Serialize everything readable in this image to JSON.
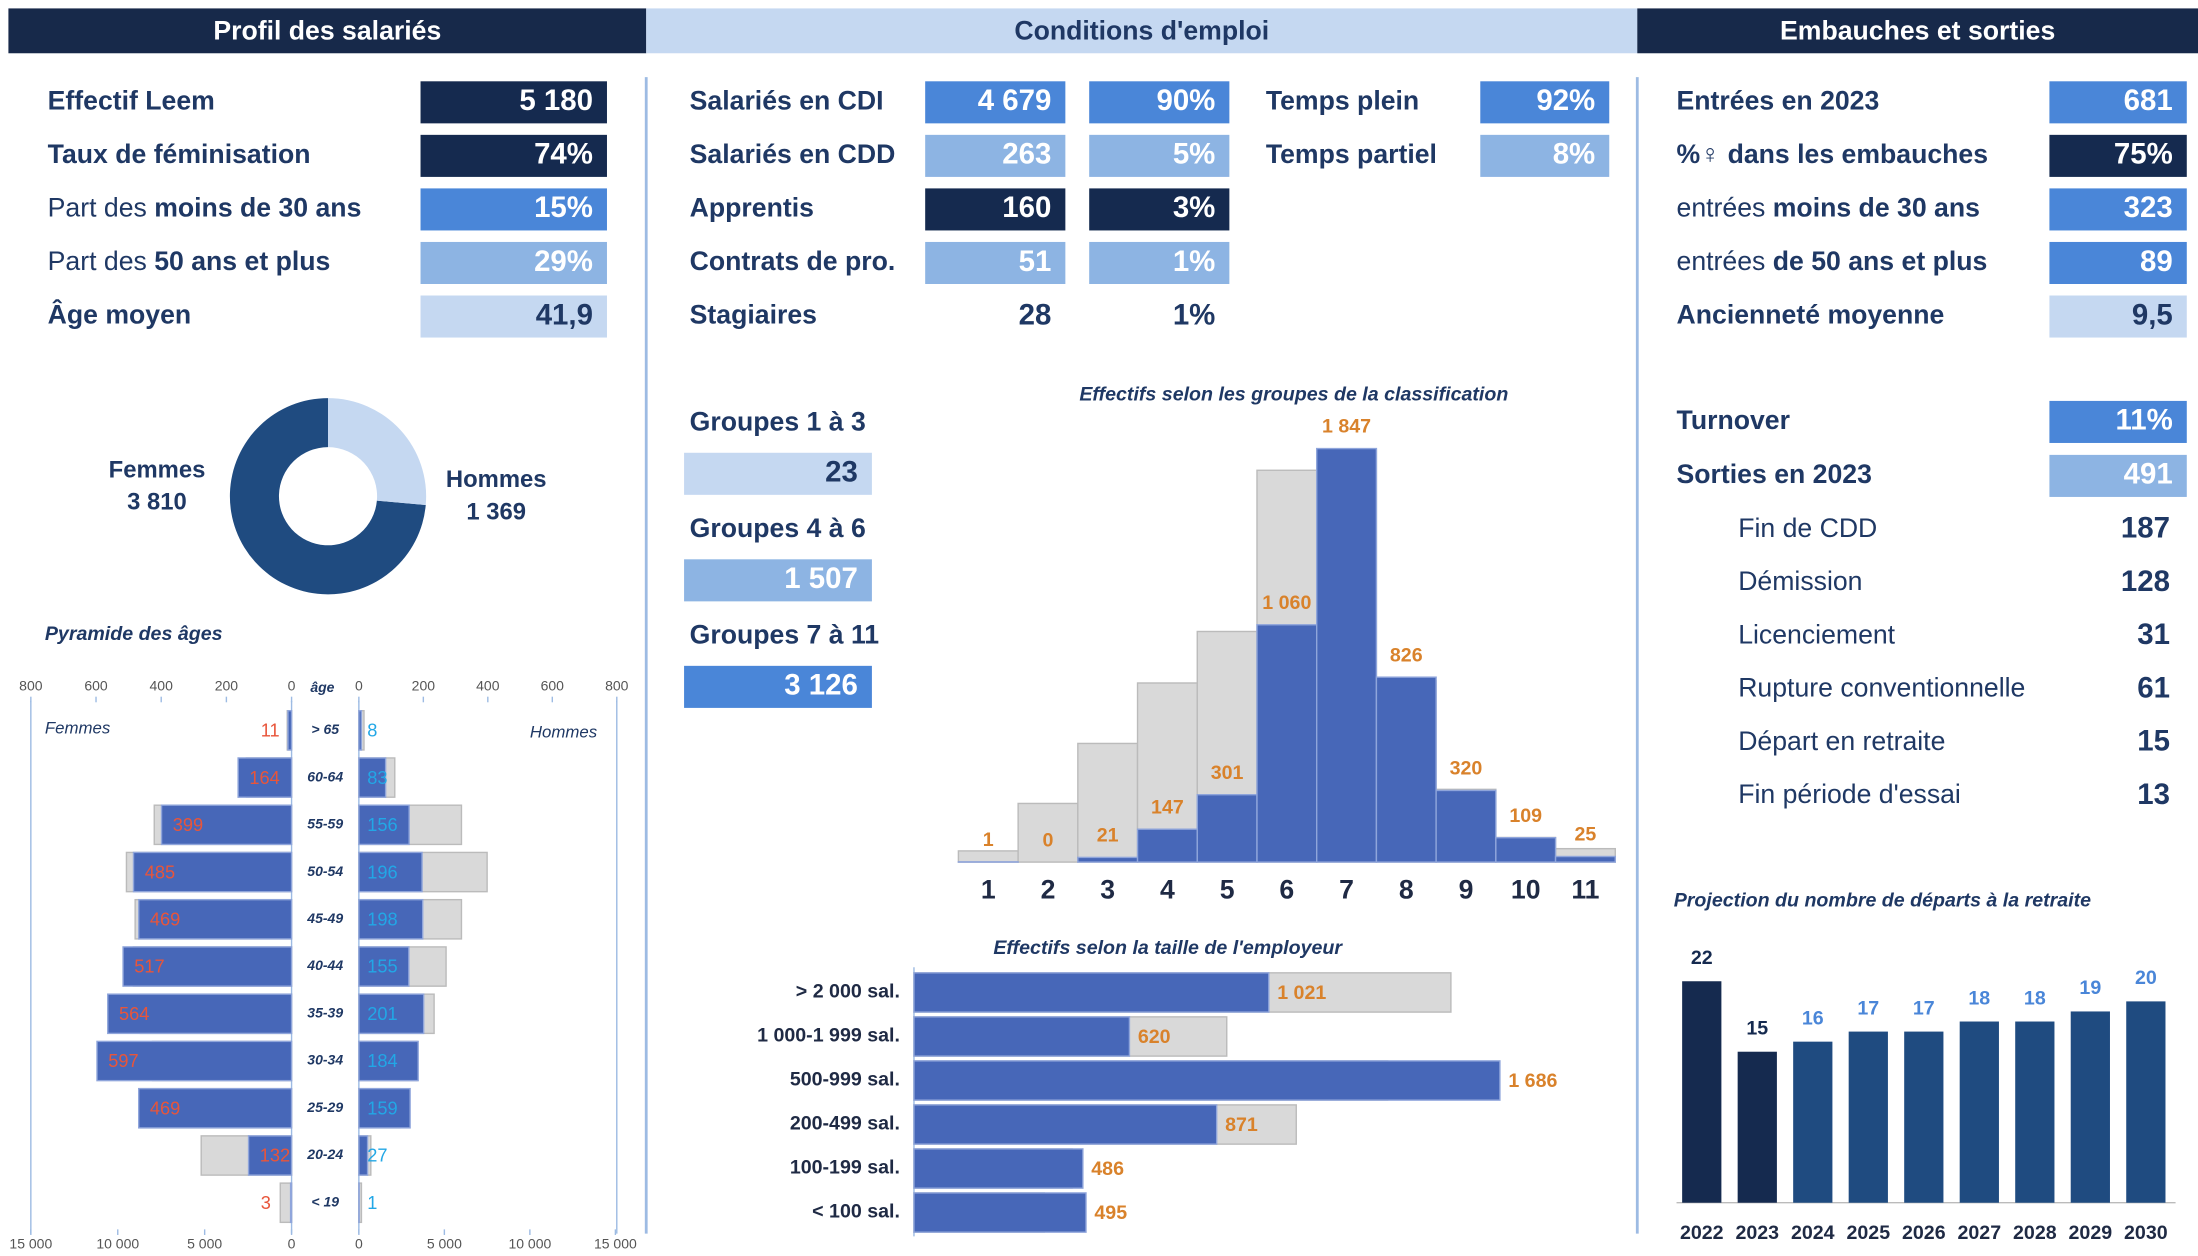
{
  "headers": [
    "Profil des salariés",
    "Conditions d'emploi",
    "Embauches et sorties"
  ],
  "profil": [
    {
      "bold": "Effectif Leem",
      "value": "5 180",
      "style": "dark"
    },
    {
      "bold": "Taux de féminisation",
      "value": "74%",
      "style": "dark"
    },
    {
      "normal": "Part des ",
      "bold": "moins de 30 ans",
      "value": "15%",
      "style": "mid"
    },
    {
      "normal": "Part des ",
      "bold": "50 ans et plus",
      "value": "29%",
      "style": "light"
    },
    {
      "bold": "Âge moyen",
      "value": "41,9",
      "style": "pale"
    }
  ],
  "conditions": [
    {
      "bold": "Salariés en CDI",
      "value": "4 679",
      "share": "90%",
      "style": "mid"
    },
    {
      "bold": "Salariés en CDD",
      "value": "263",
      "share": "5%",
      "style": "light"
    },
    {
      "bold": "Apprentis",
      "value": "160",
      "share": "3%",
      "style": "dark"
    },
    {
      "bold": "Contrats de pro.",
      "value": "51",
      "share": "1%",
      "style": "light"
    },
    {
      "bold": "Stagiaires",
      "value": "28",
      "share": "1%"
    }
  ],
  "temps": [
    {
      "bold": "Temps plein",
      "value": "92%",
      "style": "mid"
    },
    {
      "bold": "Temps partiel",
      "value": "8%",
      "style": "light"
    }
  ],
  "groupes": [
    {
      "bold": "Groupes 1 à 3",
      "value": "23",
      "style": "pale"
    },
    {
      "bold": "Groupes 4 à 6",
      "value": "1 507",
      "style": "light"
    },
    {
      "bold": "Groupes 7 à 11",
      "value": "3 126",
      "style": "mid"
    }
  ],
  "embauches": [
    {
      "bold": "Entrées en 2023",
      "value": "681",
      "style": "mid"
    },
    {
      "bold": "%♀ dans les embauches",
      "value": "75%",
      "style": "dark"
    },
    {
      "normal": "entrées ",
      "bold": "moins de 30 ans",
      "value": "323",
      "style": "mid"
    },
    {
      "normal": "entrées ",
      "bold": "de 50 ans et plus",
      "value": "89",
      "style": "mid"
    },
    {
      "bold": "Ancienneté moyenne",
      "value": "9,5",
      "style": "pale"
    }
  ],
  "sorties": [
    {
      "bold": "Turnover",
      "value": "11%",
      "style": "mid"
    },
    {
      "bold": "Sorties en 2023",
      "value": "491",
      "style": "light"
    }
  ],
  "motifs": [
    {
      "normal": "Fin de CDD",
      "value": "187"
    },
    {
      "normal": "Démission",
      "value": "128"
    },
    {
      "normal": "Licenciement",
      "value": "31"
    },
    {
      "normal": "Rupture conventionnelle",
      "value": "61"
    },
    {
      "normal": "Départ en retraite",
      "value": "15"
    },
    {
      "normal": "Fin période d'essai",
      "value": "13"
    }
  ],
  "chart_data": [
    {
      "type": "pie",
      "donut": true,
      "categories": [
        "Femmes",
        "Hommes"
      ],
      "values": [
        3810,
        1369
      ],
      "value_labels": [
        "3 810",
        "1 369"
      ],
      "colors": [
        "#1f4b80",
        "#c5d8f1"
      ]
    },
    {
      "type": "pyramid",
      "title": "Pyramide des âges",
      "category_label": "âge",
      "categories": [
        "> 65",
        "60-64",
        "55-59",
        "50-54",
        "45-49",
        "40-44",
        "35-39",
        "30-34",
        "25-29",
        "20-24",
        "< 19"
      ],
      "series": [
        {
          "color": "#d9d9d9",
          "side": "left",
          "axis": "x2",
          "values": [
            250,
            2600,
            7900,
            9500,
            9000,
            9100,
            8700,
            8000,
            8700,
            5200,
            650
          ]
        },
        {
          "color": "#d9d9d9",
          "side": "right",
          "axis": "x2",
          "values": [
            300,
            2100,
            6000,
            7500,
            6000,
            5100,
            4400,
            3400,
            2400,
            700,
            150
          ]
        },
        {
          "name": "Femmes",
          "color": "#4767b8",
          "label_color": "#e8553a",
          "side": "left",
          "values": [
            11,
            164,
            399,
            485,
            469,
            517,
            564,
            597,
            469,
            132,
            3
          ]
        },
        {
          "name": "Hommes",
          "color": "#4767b8",
          "label_color": "#22a7e6",
          "side": "right",
          "values": [
            8,
            83,
            156,
            196,
            198,
            155,
            201,
            184,
            159,
            27,
            1
          ]
        }
      ],
      "xlim": [
        0,
        800
      ],
      "xticks": [
        0,
        200,
        400,
        600,
        800
      ],
      "x2lim": [
        0,
        15000
      ],
      "x2ticks": [
        0,
        {
          "value": 5000,
          "label": "5 000"
        },
        {
          "value": 10000,
          "label": "10 000"
        },
        {
          "value": 15000,
          "label": "15 000"
        }
      ]
    },
    {
      "type": "bar",
      "title": "Effectifs selon les groupes de la classification",
      "categories": [
        "1",
        "2",
        "3",
        "4",
        "5",
        "6",
        "7",
        "8",
        "9",
        "10",
        "11"
      ],
      "series": [
        {
          "color": "#d9d9d9",
          "values": [
            50,
            262,
            530,
            800,
            1030,
            1750,
            1840,
            810,
            325,
            110,
            60
          ]
        },
        {
          "color": "#4767b8",
          "label_color": "#d9822b",
          "values": [
            1,
            0,
            21,
            147,
            301,
            1060,
            1847,
            826,
            320,
            109,
            25
          ],
          "value_labels": [
            "1",
            "0",
            "21",
            "147",
            "301",
            "1 060",
            "1 847",
            "826",
            "320",
            "109",
            "25"
          ]
        }
      ]
    },
    {
      "type": "bar",
      "orientation": "horizontal",
      "title": "Effectifs selon la taille de l'employeur",
      "categories": [
        "> 2 000 sal.",
        "1 000-1 999 sal.",
        "500-999 sal.",
        "200-499 sal.",
        "100-199 sal.",
        "< 100 sal."
      ],
      "series": [
        {
          "color": "#d9d9d9",
          "values": [
            1545,
            900,
            1363,
            1100,
            455,
            375
          ]
        },
        {
          "color": "#4767b8",
          "label_color": "#d9822b",
          "values": [
            1021,
            620,
            1686,
            871,
            486,
            495
          ],
          "value_labels": [
            "1 021",
            "620",
            "1 686",
            "871",
            "486",
            "495"
          ]
        }
      ]
    },
    {
      "type": "bar",
      "title": "Projection du nombre de départs à la retraite",
      "categories": [
        "2022",
        "2023",
        "2024",
        "2025",
        "2026",
        "2027",
        "2028",
        "2029",
        "2030"
      ],
      "series": [
        {
          "values": [
            22,
            15,
            16,
            17,
            17,
            18,
            18,
            19,
            20
          ],
          "colors": [
            "#152a4f",
            "#152a4f",
            "#1f4b80",
            "#1f4b80",
            "#1f4b80",
            "#1f4b80",
            "#1f4b80",
            "#1f4b80",
            "#1f4b80"
          ],
          "label_colors": [
            "#152a4f",
            "#152a4f",
            "#4a86d8",
            "#4a86d8",
            "#4a86d8",
            "#4a86d8",
            "#4a86d8",
            "#4a86d8",
            "#4a86d8"
          ]
        }
      ]
    }
  ]
}
